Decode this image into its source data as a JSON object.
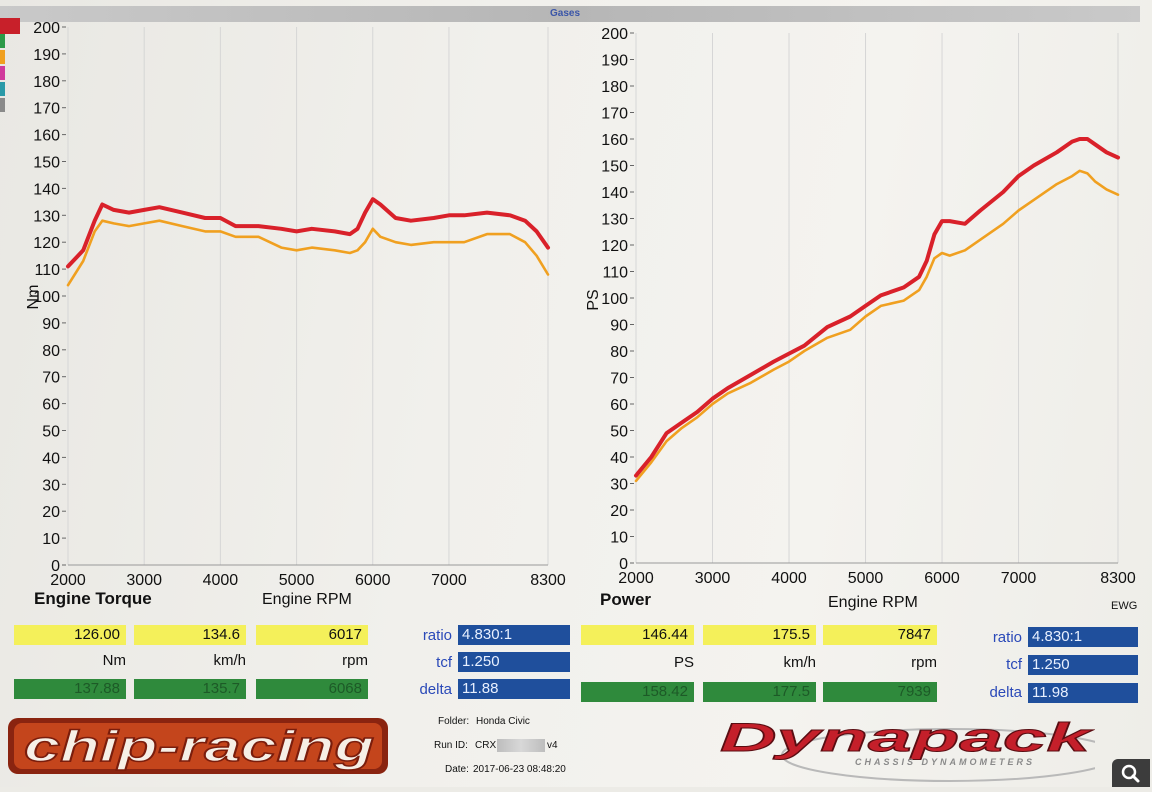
{
  "header": {
    "label": "Gases"
  },
  "colors": {
    "red": "#d9212a",
    "orange": "#f0a020",
    "yellow": "#f4f05a",
    "green": "#2f8a3c",
    "blue": "#1f4f9c"
  },
  "legend_swatches": [
    "#c8202a",
    "#2c9a48",
    "#f0a020",
    "#d03a9c",
    "#2a9aa8",
    "#8a8a8a"
  ],
  "left_panel": {
    "title": "Engine Torque",
    "xlabel": "Engine RPM",
    "readout": {
      "value1": "126.00",
      "value2": "134.6",
      "value3": "6017",
      "unit1": "Nm",
      "unit2": "km/h",
      "unit3": "rpm",
      "value4": "137.88",
      "value5": "135.7",
      "value6": "6068"
    },
    "params": {
      "ratio_label": "ratio",
      "ratio": "4.830:1",
      "tcf_label": "tcf",
      "tcf": "1.250",
      "delta_label": "delta",
      "delta": "11.88"
    }
  },
  "right_panel": {
    "title": "Power",
    "xlabel": "Engine RPM",
    "note": "EWG",
    "readout": {
      "value1": "146.44",
      "value2": "175.5",
      "value3": "7847",
      "unit1": "PS",
      "unit2": "km/h",
      "unit3": "rpm",
      "value4": "158.42",
      "value5": "177.5",
      "value6": "7939"
    },
    "params": {
      "ratio_label": "ratio",
      "ratio": "4.830:1",
      "tcf_label": "tcf",
      "tcf": "1.250",
      "delta_label": "delta",
      "delta": "11.98"
    }
  },
  "footer": {
    "folder_label": "Folder:",
    "folder": "Honda Civic",
    "run_label": "Run ID:",
    "run": "CRX",
    "run_suffix": "v4",
    "date_label": "Date:",
    "date": "2017-06-23 08:48:20",
    "brand_left": "chip-racing",
    "brand_right": "Dynapack",
    "brand_right_sub": "CHASSIS DYNAMOMETERS"
  },
  "chart_data": [
    {
      "type": "line",
      "title": "Engine Torque",
      "xlabel": "Engine RPM",
      "ylabel": "Nm",
      "xlim": [
        2000,
        8300
      ],
      "ylim": [
        0,
        200
      ],
      "xticks": [
        2000,
        3000,
        4000,
        5000,
        6000,
        7000,
        8300
      ],
      "yticks": [
        0,
        10,
        20,
        30,
        40,
        50,
        60,
        70,
        80,
        90,
        100,
        110,
        120,
        130,
        140,
        150,
        160,
        170,
        180,
        190,
        200
      ],
      "series": [
        {
          "color": "#d9212a",
          "x": [
            2000,
            2200,
            2350,
            2450,
            2600,
            2800,
            3000,
            3200,
            3500,
            3800,
            4000,
            4200,
            4500,
            4800,
            5000,
            5200,
            5500,
            5700,
            5800,
            5900,
            6000,
            6100,
            6300,
            6500,
            6800,
            7000,
            7200,
            7500,
            7800,
            8000,
            8150,
            8300
          ],
          "y": [
            111,
            117,
            128,
            134,
            132,
            131,
            132,
            133,
            131,
            129,
            129,
            126,
            126,
            125,
            124,
            125,
            124,
            123,
            125,
            131,
            136,
            134,
            129,
            128,
            129,
            130,
            130,
            131,
            130,
            128,
            124,
            118
          ]
        },
        {
          "color": "#f0a020",
          "x": [
            2000,
            2200,
            2350,
            2450,
            2600,
            2800,
            3000,
            3200,
            3500,
            3800,
            4000,
            4200,
            4500,
            4800,
            5000,
            5200,
            5500,
            5700,
            5800,
            5900,
            6000,
            6100,
            6300,
            6500,
            6800,
            7000,
            7200,
            7500,
            7800,
            8000,
            8150,
            8300
          ],
          "y": [
            104,
            113,
            124,
            128,
            127,
            126,
            127,
            128,
            126,
            124,
            124,
            122,
            122,
            118,
            117,
            118,
            117,
            116,
            117,
            120,
            125,
            122,
            120,
            119,
            120,
            120,
            120,
            123,
            123,
            120,
            115,
            108
          ]
        }
      ]
    },
    {
      "type": "line",
      "title": "Power",
      "xlabel": "Engine RPM",
      "ylabel": "PS",
      "xlim": [
        2000,
        8300
      ],
      "ylim": [
        0,
        200
      ],
      "xticks": [
        2000,
        3000,
        4000,
        5000,
        6000,
        7000,
        8300
      ],
      "yticks": [
        0,
        10,
        20,
        30,
        40,
        50,
        60,
        70,
        80,
        90,
        100,
        110,
        120,
        130,
        140,
        150,
        160,
        170,
        180,
        190,
        200
      ],
      "series": [
        {
          "color": "#d9212a",
          "x": [
            2000,
            2200,
            2400,
            2600,
            2800,
            3000,
            3200,
            3500,
            3800,
            4000,
            4200,
            4500,
            4800,
            5000,
            5200,
            5500,
            5700,
            5800,
            5900,
            6000,
            6100,
            6300,
            6500,
            6800,
            7000,
            7200,
            7500,
            7700,
            7800,
            7900,
            8000,
            8150,
            8300
          ],
          "y": [
            33,
            40,
            49,
            53,
            57,
            62,
            66,
            71,
            76,
            79,
            82,
            89,
            93,
            97,
            101,
            104,
            108,
            114,
            124,
            129,
            129,
            128,
            133,
            140,
            146,
            150,
            155,
            159,
            160,
            160,
            158,
            155,
            153
          ]
        },
        {
          "color": "#f0a020",
          "x": [
            2000,
            2200,
            2400,
            2600,
            2800,
            3000,
            3200,
            3500,
            3800,
            4000,
            4200,
            4500,
            4800,
            5000,
            5200,
            5500,
            5700,
            5800,
            5900,
            6000,
            6100,
            6300,
            6500,
            6800,
            7000,
            7200,
            7500,
            7700,
            7800,
            7900,
            8000,
            8150,
            8300
          ],
          "y": [
            31,
            38,
            46,
            51,
            55,
            60,
            64,
            68,
            73,
            76,
            80,
            85,
            88,
            93,
            97,
            99,
            103,
            108,
            115,
            117,
            116,
            118,
            122,
            128,
            133,
            137,
            143,
            146,
            148,
            147,
            144,
            141,
            139
          ]
        }
      ]
    }
  ]
}
